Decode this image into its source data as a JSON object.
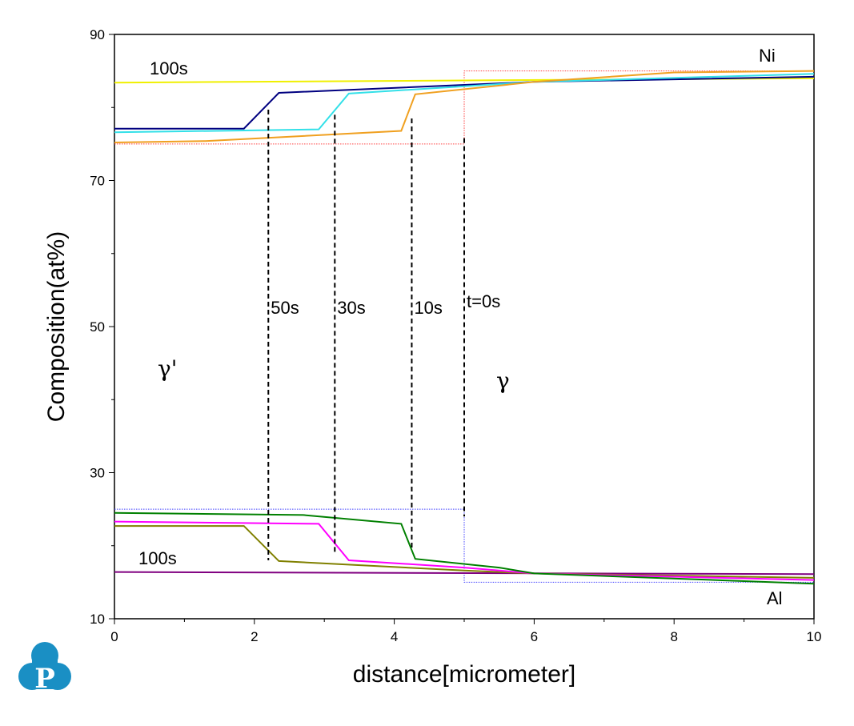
{
  "chart_data": {
    "type": "line",
    "xlabel": "distance[micrometer]",
    "ylabel": "Composition(at%)",
    "xlim": [
      0,
      10
    ],
    "ylim": [
      10,
      90
    ],
    "xticks": [
      0,
      2,
      4,
      6,
      8,
      10
    ],
    "yticks": [
      10,
      30,
      50,
      70,
      90
    ],
    "grid": false,
    "series": [
      {
        "name": "Ni t=0s",
        "color": "#ff4040",
        "style": "dotted",
        "x": [
          0,
          5,
          5,
          10
        ],
        "y": [
          75,
          75,
          85,
          85
        ]
      },
      {
        "name": "Ni 100s",
        "color": "#f0f000",
        "style": "solid",
        "x": [
          0,
          10
        ],
        "y": [
          83.4,
          84.0
        ]
      },
      {
        "name": "Ni 50s",
        "color": "#000080",
        "style": "solid",
        "x": [
          0,
          1.85,
          2.35,
          6,
          10
        ],
        "y": [
          77.1,
          77.1,
          82.0,
          83.5,
          84.2
        ]
      },
      {
        "name": "Ni 30s",
        "color": "#33e0e8",
        "style": "solid",
        "x": [
          0,
          2.92,
          3.35,
          6,
          10
        ],
        "y": [
          76.6,
          77.0,
          81.9,
          83.5,
          84.6
        ]
      },
      {
        "name": "Ni 10s",
        "color": "#f0a020",
        "style": "solid",
        "x": [
          0,
          1.3,
          4.1,
          4.3,
          6,
          8,
          10
        ],
        "y": [
          75.2,
          75.4,
          76.8,
          81.8,
          83.5,
          84.8,
          85.0
        ]
      },
      {
        "name": "Al t=0s",
        "color": "#4040ff",
        "style": "dotted",
        "x": [
          0,
          5,
          5,
          10
        ],
        "y": [
          25,
          25,
          15,
          15
        ]
      },
      {
        "name": "Al 100s",
        "color": "#800080",
        "style": "solid",
        "x": [
          0,
          10
        ],
        "y": [
          16.4,
          16.1
        ]
      },
      {
        "name": "Al 50s",
        "color": "#808000",
        "style": "solid",
        "x": [
          0,
          1.85,
          2.35,
          5,
          6,
          10
        ],
        "y": [
          22.7,
          22.7,
          17.9,
          16.6,
          16.2,
          15.6
        ]
      },
      {
        "name": "Al 30s",
        "color": "#ff00ff",
        "style": "solid",
        "x": [
          0,
          2.92,
          3.35,
          5,
          6,
          10
        ],
        "y": [
          23.3,
          23.0,
          18.0,
          17.0,
          16.2,
          15.3
        ]
      },
      {
        "name": "Al 10s",
        "color": "#008000",
        "style": "solid",
        "x": [
          0,
          2.7,
          4.1,
          4.3,
          5.5,
          6,
          10
        ],
        "y": [
          24.5,
          24.2,
          23.0,
          18.2,
          17.0,
          16.2,
          14.8
        ]
      }
    ],
    "interfaces": [
      {
        "label": "50s",
        "x": 2.2,
        "y": [
          18,
          79.7
        ]
      },
      {
        "label": "30s",
        "x": 3.15,
        "y": [
          19,
          79
        ]
      },
      {
        "label": "10s",
        "x": 4.25,
        "y": [
          19.6,
          78.5
        ]
      },
      {
        "label": "t=0s",
        "x": 5.0,
        "y": [
          24,
          75.8
        ]
      }
    ],
    "annotations": {
      "ni": "Ni",
      "al": "Al",
      "ni_time": "100s",
      "al_time": "100s",
      "gamma_prime": "γ'",
      "gamma": "γ"
    }
  },
  "logo": {
    "letter": "P",
    "color": "#1a8fc4"
  }
}
